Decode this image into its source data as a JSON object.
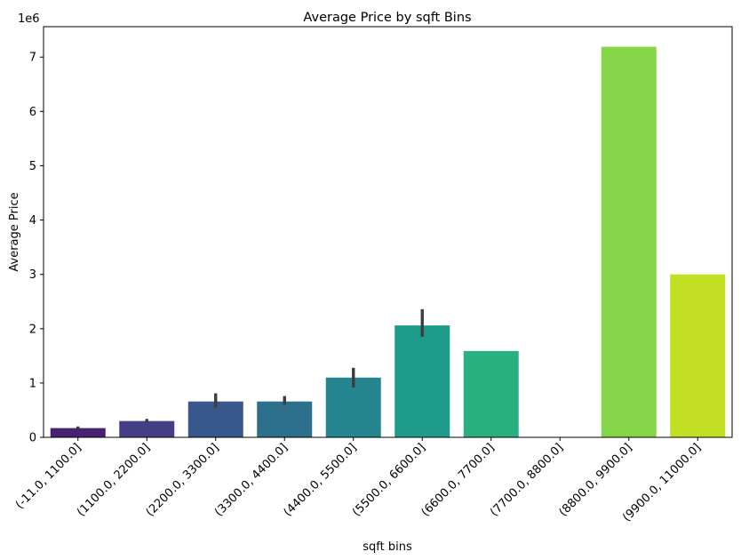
{
  "chart_data": {
    "type": "bar",
    "title": "Average Price by sqft Bins",
    "xlabel": "sqft bins",
    "ylabel": "Average Price",
    "y_offset_label": "1e6",
    "y_scale_factor": 1000000,
    "ylim": [
      0,
      7560000
    ],
    "yticks": [
      0,
      1,
      2,
      3,
      4,
      5,
      6,
      7
    ],
    "grid": false,
    "categories": [
      "(-11.0, 1100.0]",
      "(1100.0, 2200.0]",
      "(2200.0, 3300.0]",
      "(3300.0, 4400.0]",
      "(4400.0, 5500.0]",
      "(5500.0, 6600.0]",
      "(6600.0, 7700.0]",
      "(7700.0, 8800.0]",
      "(8800.0, 9900.0]",
      "(9900.0, 11000.0]"
    ],
    "values": [
      170000,
      300000,
      660000,
      660000,
      1100000,
      2060000,
      1590000,
      null,
      7190000,
      3000000
    ],
    "error_low": [
      150000,
      270000,
      550000,
      600000,
      920000,
      1850000,
      null,
      null,
      null,
      null
    ],
    "error_high": [
      200000,
      340000,
      810000,
      760000,
      1280000,
      2360000,
      null,
      null,
      null,
      null
    ],
    "colors": [
      "#482173",
      "#433e85",
      "#38588c",
      "#2d708e",
      "#25858e",
      "#1e9b8a",
      "#2ab07f",
      "#52c569",
      "#86d549",
      "#c2df23"
    ]
  }
}
